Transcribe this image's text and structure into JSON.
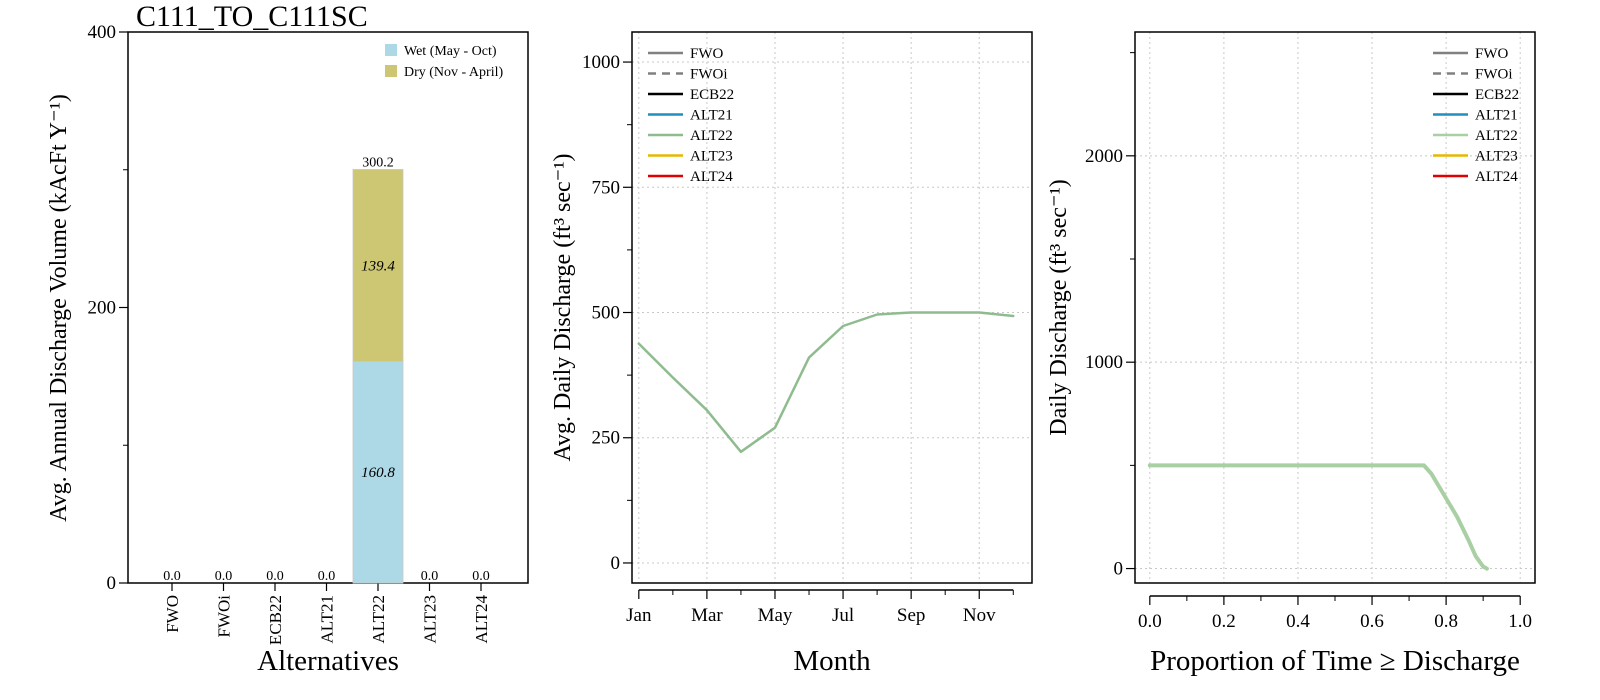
{
  "chart_data": [
    {
      "type": "bar",
      "title": "C111_TO_C111SC",
      "xlabel": "Alternatives",
      "ylabel": "Avg. Annual Discharge Volume (kAcFt Y⁻¹)",
      "ylim": [
        0,
        400
      ],
      "yticks": [
        0,
        200,
        400
      ],
      "categories": [
        "FWO",
        "FWOi",
        "ECB22",
        "ALT21",
        "ALT22",
        "ALT23",
        "ALT24"
      ],
      "stacked": true,
      "series": [
        {
          "name": "Wet (May - Oct)",
          "color": "#add8e6",
          "values": [
            0,
            0,
            0,
            0,
            160.8,
            0,
            0
          ]
        },
        {
          "name": "Dry (Nov - April)",
          "color": "#cdc673",
          "values": [
            0,
            0,
            0,
            0,
            139.4,
            0,
            0
          ]
        }
      ],
      "total_labels": [
        "0.0",
        "0.0",
        "0.0",
        "0.0",
        "300.2",
        "0.0",
        "0.0"
      ],
      "segment_labels": [
        {
          "category": "ALT22",
          "series": "Wet (May - Oct)",
          "text": "160.8"
        },
        {
          "category": "ALT22",
          "series": "Dry (Nov - April)",
          "text": "139.4"
        }
      ],
      "legend_position": "top-right"
    },
    {
      "type": "line",
      "xlabel": "Month",
      "ylabel": "Avg. Daily Discharge (ft³ sec⁻¹)",
      "ylim": [
        0,
        1000
      ],
      "yticks": [
        0,
        250,
        500,
        750,
        1000
      ],
      "xlim": [
        1,
        12
      ],
      "xticks": [
        1,
        3,
        5,
        7,
        9,
        11
      ],
      "xticklabels": [
        "Jan",
        "Mar",
        "May",
        "Jul",
        "Sep",
        "Nov"
      ],
      "grid": true,
      "legend_position": "top-left",
      "legend": [
        {
          "name": "FWO",
          "color": "#808080",
          "dash": false
        },
        {
          "name": "FWOi",
          "color": "#808080",
          "dash": true
        },
        {
          "name": "ECB22",
          "color": "#000000",
          "dash": false
        },
        {
          "name": "ALT21",
          "color": "#1f8fbf",
          "dash": false
        },
        {
          "name": "ALT22",
          "color": "#8fbc8f",
          "dash": false
        },
        {
          "name": "ALT23",
          "color": "#e6b800",
          "dash": false
        },
        {
          "name": "ALT24",
          "color": "#e00000",
          "dash": false
        }
      ],
      "series": [
        {
          "name": "ALT22",
          "color": "#8fbc8f",
          "x": [
            1,
            2,
            3,
            4,
            5,
            6,
            7,
            8,
            9,
            10,
            11,
            12
          ],
          "values": [
            438,
            370,
            305,
            222,
            270,
            410,
            473,
            496,
            500,
            500,
            500,
            493
          ]
        }
      ]
    },
    {
      "type": "line",
      "xlabel": "Proportion of Time ≥ Discharge",
      "ylabel": "Daily Discharge (ft³ sec⁻¹)",
      "ylim": [
        0,
        2500
      ],
      "yticks": [
        0,
        1000,
        2000
      ],
      "xlim": [
        0,
        1
      ],
      "xticks": [
        0,
        0.2,
        0.4,
        0.6,
        0.8,
        1.0
      ],
      "xticklabels": [
        "0.0",
        "0.2",
        "0.4",
        "0.6",
        "0.8",
        "1.0"
      ],
      "grid": true,
      "legend_position": "top-right",
      "legend": [
        {
          "name": "FWO",
          "color": "#808080",
          "dash": false
        },
        {
          "name": "FWOi",
          "color": "#808080",
          "dash": true
        },
        {
          "name": "ECB22",
          "color": "#000000",
          "dash": false
        },
        {
          "name": "ALT21",
          "color": "#1f8fbf",
          "dash": false
        },
        {
          "name": "ALT22",
          "color": "#a9cfa4",
          "dash": false
        },
        {
          "name": "ALT23",
          "color": "#e6b800",
          "dash": false
        },
        {
          "name": "ALT24",
          "color": "#e00000",
          "dash": false
        }
      ],
      "series": [
        {
          "name": "ALT22",
          "color": "#a9cfa4",
          "x": [
            0.0,
            0.74,
            0.76,
            0.78,
            0.8,
            0.83,
            0.86,
            0.88,
            0.9,
            0.91
          ],
          "values": [
            500,
            500,
            460,
            400,
            340,
            250,
            140,
            60,
            10,
            0
          ]
        }
      ]
    }
  ]
}
